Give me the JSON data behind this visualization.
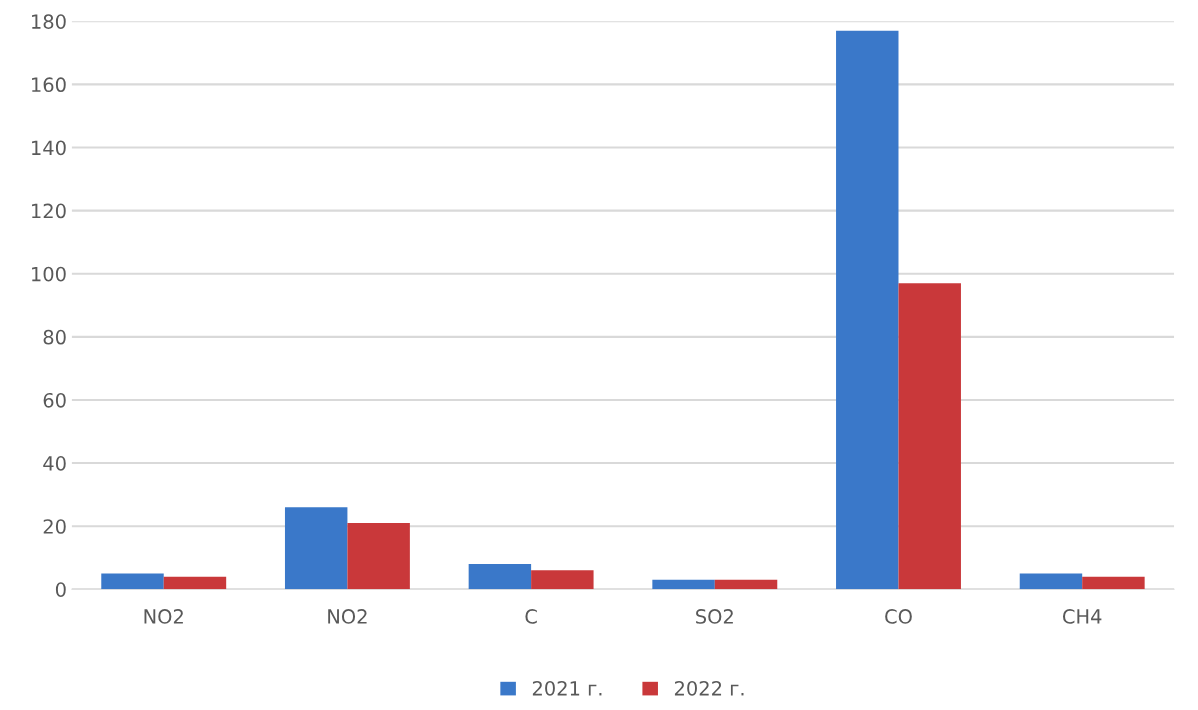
{
  "chart_data": {
    "type": "bar",
    "categories": [
      "NO2",
      "NO2",
      "C",
      "SO2",
      "CO",
      "CH4"
    ],
    "series": [
      {
        "name": "2021 г.",
        "color": "#3a78c9",
        "values": [
          5,
          26,
          8,
          3,
          177,
          5
        ]
      },
      {
        "name": "2022 г.",
        "color": "#c9383a",
        "values": [
          4,
          21,
          6,
          3,
          97,
          4
        ]
      }
    ],
    "ylim": [
      0,
      180
    ],
    "yticks": [
      0,
      20,
      40,
      60,
      80,
      100,
      120,
      140,
      160,
      180
    ],
    "grid": "y",
    "legend": "bottom"
  }
}
